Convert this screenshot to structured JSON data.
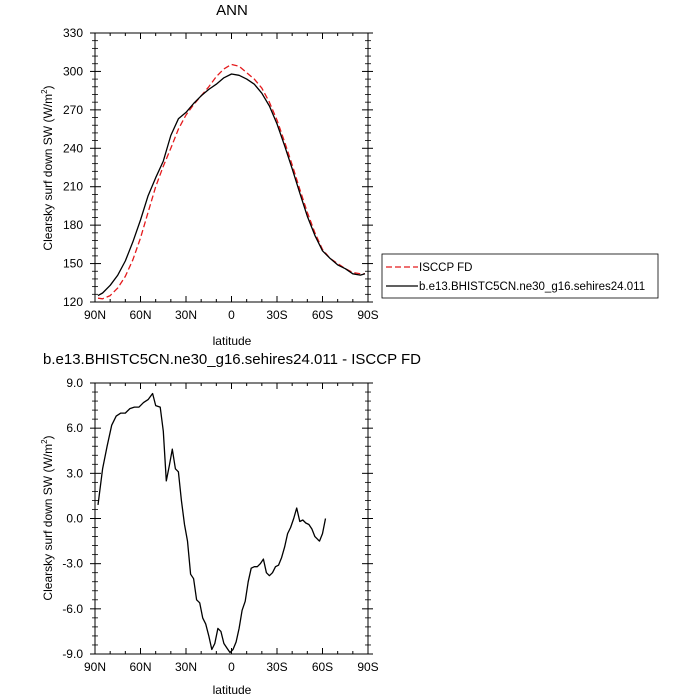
{
  "chart_data": [
    {
      "type": "line",
      "title": "ANN",
      "xlabel": "latitude",
      "ylabel": "Clearsky surf down SW (W/m",
      "ylabel_sup": "2",
      "ylabel_close": ")",
      "xlim": [
        90,
        -90
      ],
      "ylim": [
        120,
        330
      ],
      "xticks": [
        {
          "v": 90,
          "label": "90N"
        },
        {
          "v": 60,
          "label": "60N"
        },
        {
          "v": 30,
          "label": "30N"
        },
        {
          "v": 0,
          "label": "0"
        },
        {
          "v": -30,
          "label": "30S"
        },
        {
          "v": -60,
          "label": "60S"
        },
        {
          "v": -90,
          "label": "90S"
        }
      ],
      "yticks": [
        {
          "v": 120,
          "label": "120"
        },
        {
          "v": 150,
          "label": "150"
        },
        {
          "v": 180,
          "label": "180"
        },
        {
          "v": 210,
          "label": "210"
        },
        {
          "v": 240,
          "label": "240"
        },
        {
          "v": 270,
          "label": "270"
        },
        {
          "v": 300,
          "label": "300"
        },
        {
          "v": 330,
          "label": "330"
        }
      ],
      "legend": {
        "position": "right"
      },
      "series": [
        {
          "name": "ISCCP FD",
          "color": "#e41a1c",
          "dash": "dashed",
          "points": [
            [
              88,
              123
            ],
            [
              85,
              122.5
            ],
            [
              80,
              125
            ],
            [
              75,
              131
            ],
            [
              70,
              140
            ],
            [
              65,
              153
            ],
            [
              60,
              170
            ],
            [
              55,
              190
            ],
            [
              50,
              210
            ],
            [
              45,
              226
            ],
            [
              40,
              240
            ],
            [
              35,
              255
            ],
            [
              30,
              266
            ],
            [
              25,
              274
            ],
            [
              20,
              281
            ],
            [
              15,
              288
            ],
            [
              10,
              296
            ],
            [
              5,
              302
            ],
            [
              0,
              305.5
            ],
            [
              -5,
              304
            ],
            [
              -10,
              299
            ],
            [
              -15,
              294
            ],
            [
              -20,
              287
            ],
            [
              -25,
              276
            ],
            [
              -30,
              262
            ],
            [
              -35,
              245
            ],
            [
              -40,
              227
            ],
            [
              -45,
              208
            ],
            [
              -50,
              190
            ],
            [
              -55,
              174
            ],
            [
              -60,
              161
            ],
            [
              -65,
              154
            ],
            [
              -70,
              150
            ],
            [
              -75,
              146
            ],
            [
              -80,
              143
            ],
            [
              -85,
              142
            ],
            [
              -88,
              142
            ]
          ]
        },
        {
          "name": "b.e13.BHISTC5CN.ne30_g16.sehires24.011",
          "color": "#000000",
          "dash": "solid",
          "points": [
            [
              88,
              125
            ],
            [
              85,
              127
            ],
            [
              80,
              133
            ],
            [
              75,
              141
            ],
            [
              70,
              152
            ],
            [
              65,
              167
            ],
            [
              60,
              184
            ],
            [
              55,
              203
            ],
            [
              50,
              217
            ],
            [
              45,
              230
            ],
            [
              40,
              250
            ],
            [
              35,
              263
            ],
            [
              30,
              268
            ],
            [
              25,
              275
            ],
            [
              20,
              281
            ],
            [
              15,
              286
            ],
            [
              10,
              290
            ],
            [
              5,
              295
            ],
            [
              0,
              298
            ],
            [
              -5,
              297
            ],
            [
              -10,
              294
            ],
            [
              -15,
              290
            ],
            [
              -20,
              283
            ],
            [
              -25,
              273
            ],
            [
              -30,
              259
            ],
            [
              -35,
              242
            ],
            [
              -40,
              224
            ],
            [
              -45,
              205
            ],
            [
              -50,
              187
            ],
            [
              -55,
              172
            ],
            [
              -60,
              160
            ],
            [
              -65,
              154
            ],
            [
              -70,
              149
            ],
            [
              -75,
              146
            ],
            [
              -80,
              142
            ],
            [
              -85,
              141
            ],
            [
              -88,
              142
            ]
          ]
        }
      ]
    },
    {
      "type": "line",
      "title": "b.e13.BHISTC5CN.ne30_g16.sehires24.011 - ISCCP FD",
      "xlabel": "latitude",
      "ylabel": "Clearsky surf down SW (W/m",
      "ylabel_sup": "2",
      "ylabel_close": ")",
      "xlim": [
        90,
        -90
      ],
      "ylim": [
        -9.0,
        9.0
      ],
      "xticks": [
        {
          "v": 90,
          "label": "90N"
        },
        {
          "v": 60,
          "label": "60N"
        },
        {
          "v": 30,
          "label": "30N"
        },
        {
          "v": 0,
          "label": "0"
        },
        {
          "v": -30,
          "label": "30S"
        },
        {
          "v": -60,
          "label": "60S"
        },
        {
          "v": -90,
          "label": "90S"
        }
      ],
      "yticks": [
        {
          "v": 9.0,
          "label": "9.0"
        },
        {
          "v": 6.0,
          "label": "6.0"
        },
        {
          "v": 3.0,
          "label": "3.0"
        },
        {
          "v": 0.0,
          "label": "0.0"
        },
        {
          "v": -3.0,
          "label": "-3.0"
        },
        {
          "v": -6.0,
          "label": "-6.0"
        },
        {
          "v": -9.0,
          "label": "-9.0"
        }
      ],
      "series": [
        {
          "color": "#000000",
          "dash": "solid",
          "points": [
            [
              88,
              0.9
            ],
            [
              85,
              3.3
            ],
            [
              82,
              4.8
            ],
            [
              79,
              6.2
            ],
            [
              76,
              6.8
            ],
            [
              73,
              7.0
            ],
            [
              70,
              7.0
            ],
            [
              67,
              7.3
            ],
            [
              64,
              7.4
            ],
            [
              61,
              7.4
            ],
            [
              58,
              7.7
            ],
            [
              55,
              7.9
            ],
            [
              52,
              8.3
            ],
            [
              50,
              7.5
            ],
            [
              47,
              7.4
            ],
            [
              45,
              5.8
            ],
            [
              43,
              2.5
            ],
            [
              41,
              3.5
            ],
            [
              39,
              4.6
            ],
            [
              37,
              3.3
            ],
            [
              35,
              3.1
            ],
            [
              33,
              1.2
            ],
            [
              31,
              -0.4
            ],
            [
              29,
              -1.5
            ],
            [
              27,
              -3.7
            ],
            [
              25,
              -4.0
            ],
            [
              23,
              -5.4
            ],
            [
              21,
              -5.6
            ],
            [
              19,
              -6.6
            ],
            [
              17,
              -7.0
            ],
            [
              15,
              -7.8
            ],
            [
              13,
              -8.7
            ],
            [
              11,
              -8.3
            ],
            [
              9,
              -7.3
            ],
            [
              7,
              -7.5
            ],
            [
              5,
              -8.3
            ],
            [
              3,
              -8.6
            ],
            [
              1,
              -8.9
            ],
            [
              -1,
              -8.7
            ],
            [
              -3,
              -8.2
            ],
            [
              -5,
              -7.3
            ],
            [
              -7,
              -6.1
            ],
            [
              -9,
              -5.5
            ],
            [
              -11,
              -4.2
            ],
            [
              -13,
              -3.3
            ],
            [
              -15,
              -3.2
            ],
            [
              -17,
              -3.2
            ],
            [
              -19,
              -3.0
            ],
            [
              -21,
              -2.7
            ],
            [
              -23,
              -3.6
            ],
            [
              -25,
              -3.8
            ],
            [
              -27,
              -3.6
            ],
            [
              -29,
              -3.2
            ],
            [
              -31,
              -3.1
            ],
            [
              -33,
              -2.6
            ],
            [
              -35,
              -1.9
            ],
            [
              -37,
              -1.0
            ],
            [
              -39,
              -0.6
            ],
            [
              -41,
              0.0
            ],
            [
              -43,
              0.7
            ],
            [
              -45,
              -0.2
            ],
            [
              -47,
              -0.1
            ],
            [
              -49,
              -0.3
            ],
            [
              -51,
              -0.4
            ],
            [
              -53,
              -0.7
            ],
            [
              -55,
              -1.2
            ],
            [
              -57,
              -1.4
            ],
            [
              -58,
              -1.5
            ],
            [
              -60,
              -1.0
            ],
            [
              -62,
              0.0
            ]
          ]
        }
      ]
    }
  ]
}
